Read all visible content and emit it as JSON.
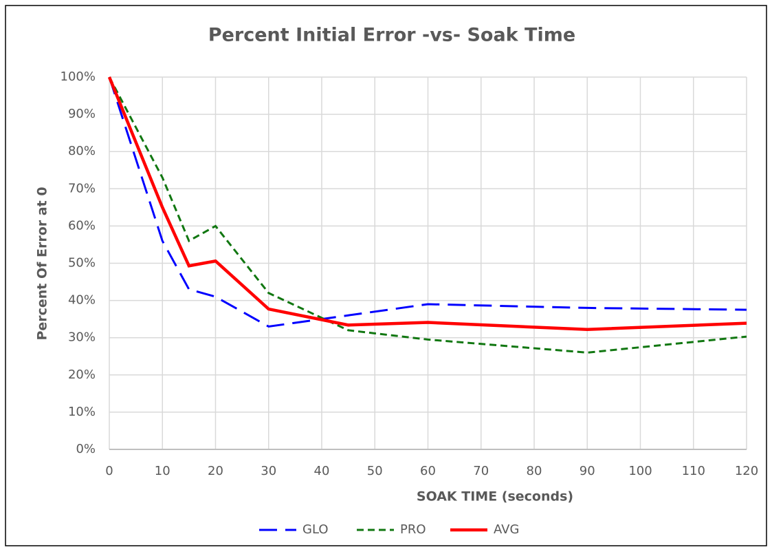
{
  "chart_data": {
    "type": "line",
    "title": "Percent Initial Error -vs- Soak Time",
    "x_label": "SOAK TIME (seconds)",
    "y_label": "Percent Of Error at 0",
    "x": [
      0,
      10,
      15,
      20,
      30,
      45,
      60,
      90,
      120
    ],
    "series": [
      {
        "name": "GLO",
        "color": "#0000ff",
        "dash": "long",
        "values": [
          100,
          56,
          43,
          41,
          33,
          36,
          39,
          38,
          37.5
        ]
      },
      {
        "name": "PRO",
        "color": "#117711",
        "dash": "short",
        "values": [
          100,
          73,
          56,
          60,
          42,
          32,
          29.5,
          26,
          30.3
        ]
      },
      {
        "name": "AVG",
        "color": "#ff0000",
        "dash": "solid",
        "values": [
          100,
          65,
          49.3,
          50.6,
          37.7,
          33.4,
          34.1,
          32.2,
          33.9
        ]
      }
    ],
    "xlim": [
      0,
      120
    ],
    "xticks": [
      0,
      10,
      20,
      30,
      40,
      50,
      60,
      70,
      80,
      90,
      100,
      110,
      120
    ],
    "ylim": [
      0,
      100
    ],
    "yticks": [
      {
        "value": 0,
        "label": "0%"
      },
      {
        "value": 10,
        "label": "10%"
      },
      {
        "value": 20,
        "label": "20%"
      },
      {
        "value": 30,
        "label": "30%"
      },
      {
        "value": 40,
        "label": "40%"
      },
      {
        "value": 50,
        "label": "50%"
      },
      {
        "value": 60,
        "label": "60%"
      },
      {
        "value": 70,
        "label": "70%"
      },
      {
        "value": 80,
        "label": "80%"
      },
      {
        "value": 90,
        "label": "90%"
      },
      {
        "value": 100,
        "label": "100%"
      }
    ],
    "grid": true,
    "legend": "bottom"
  }
}
